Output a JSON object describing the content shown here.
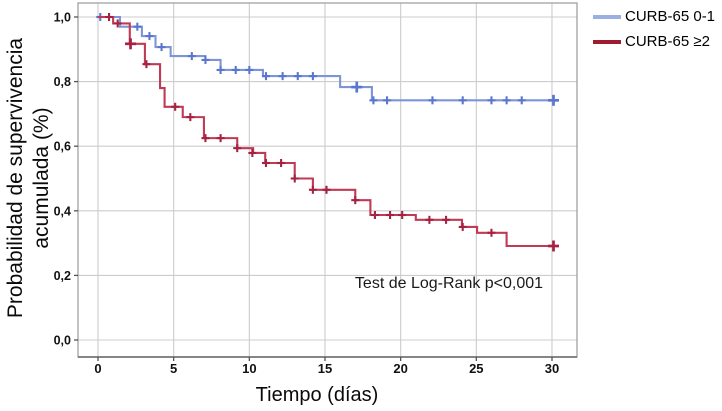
{
  "figure": {
    "ylabel_line1": "Probabilidad de supervivencia",
    "ylabel_line2": "acumulada (%)",
    "xlabel": "Tiempo (días)",
    "annotation": "Test de Log-Rank p<0,001"
  },
  "chart_data": {
    "type": "line",
    "subtype": "kaplan-meier-step-survival",
    "title": "",
    "xlabel": "Tiempo (días)",
    "ylabel": "Probabilidad de supervivencia acumulada (%)",
    "annotation": "Test de Log-Rank p<0,001",
    "grid": true,
    "legend_position": "top-right-outside",
    "xlim": [
      -1.3,
      31.7
    ],
    "ylim": [
      -0.05,
      1.04
    ],
    "xticks": {
      "values": [
        0,
        5,
        10,
        15,
        20,
        25,
        30
      ],
      "labels": [
        "0",
        "5",
        "10",
        "15",
        "20",
        "25",
        "30"
      ]
    },
    "yticks": {
      "values": [
        0.0,
        0.2,
        0.4,
        0.6,
        0.8,
        1.0
      ],
      "labels": [
        "0,0",
        "0,2",
        "0,4",
        "0,6",
        "0,8",
        "1,0"
      ]
    },
    "colors": {
      "grid": "#cccccc",
      "border": "#9a9a9a",
      "axis": "#777777",
      "tick": "#555555",
      "tick_label": "#111111"
    },
    "series": [
      {
        "name": "CURB-65 0-1",
        "color": "#7d94d8",
        "censor_color": "#5a76ce",
        "legend_color": "#9aafe2",
        "end_day": 30.1,
        "steps": [
          [
            0,
            1.0
          ],
          [
            1.45,
            0.97
          ],
          [
            2.9,
            0.941
          ],
          [
            3.8,
            0.907
          ],
          [
            4.8,
            0.879
          ],
          [
            7.1,
            0.867
          ],
          [
            8.1,
            0.836
          ],
          [
            10.9,
            0.817
          ],
          [
            16.0,
            0.783
          ],
          [
            18.1,
            0.742
          ]
        ],
        "censors": [
          [
            0.15,
            1.0,
            0
          ],
          [
            2.6,
            0.97,
            0
          ],
          [
            3.4,
            0.941,
            0
          ],
          [
            4.2,
            0.907,
            0
          ],
          [
            6.2,
            0.879,
            0
          ],
          [
            7.1,
            0.867,
            0
          ],
          [
            8.1,
            0.836,
            0
          ],
          [
            9.1,
            0.836,
            0
          ],
          [
            10.0,
            0.836,
            0
          ],
          [
            11.1,
            0.817,
            0
          ],
          [
            12.2,
            0.817,
            0
          ],
          [
            13.2,
            0.817,
            0
          ],
          [
            14.2,
            0.817,
            0
          ],
          [
            17.1,
            0.783,
            1
          ],
          [
            18.2,
            0.742,
            0
          ],
          [
            19.1,
            0.742,
            0
          ],
          [
            22.1,
            0.742,
            0
          ],
          [
            24.1,
            0.742,
            0
          ],
          [
            26.0,
            0.742,
            0
          ],
          [
            27.0,
            0.742,
            0
          ],
          [
            28.0,
            0.742,
            0
          ],
          [
            30.1,
            0.742,
            1
          ]
        ]
      },
      {
        "name": "CURB-65 ≥2",
        "color": "#c03a56",
        "censor_color": "#a52242",
        "legend_color": "#9e1c30",
        "end_day": 30.1,
        "steps": [
          [
            0,
            1.0
          ],
          [
            1.0,
            0.98
          ],
          [
            2.1,
            0.917
          ],
          [
            3.1,
            0.854
          ],
          [
            4.1,
            0.78
          ],
          [
            4.4,
            0.722
          ],
          [
            5.6,
            0.69
          ],
          [
            7.0,
            0.625
          ],
          [
            9.2,
            0.594
          ],
          [
            10.25,
            0.579
          ],
          [
            11.05,
            0.548
          ],
          [
            13.0,
            0.5
          ],
          [
            14.2,
            0.465
          ],
          [
            17.0,
            0.433
          ],
          [
            18.0,
            0.387
          ],
          [
            21.0,
            0.372
          ],
          [
            24.05,
            0.35
          ],
          [
            25.05,
            0.332
          ],
          [
            27.0,
            0.291
          ]
        ],
        "censors": [
          [
            0.73,
            1.0,
            0
          ],
          [
            1.3,
            0.98,
            0
          ],
          [
            2.15,
            0.917,
            1
          ],
          [
            3.2,
            0.854,
            0
          ],
          [
            5.1,
            0.722,
            0
          ],
          [
            6.1,
            0.69,
            0
          ],
          [
            7.1,
            0.625,
            0
          ],
          [
            8.1,
            0.625,
            0
          ],
          [
            9.2,
            0.594,
            0
          ],
          [
            10.2,
            0.579,
            0
          ],
          [
            11.1,
            0.548,
            0
          ],
          [
            12.1,
            0.548,
            0
          ],
          [
            13.0,
            0.5,
            0
          ],
          [
            14.2,
            0.465,
            0
          ],
          [
            15.1,
            0.465,
            0
          ],
          [
            17.0,
            0.433,
            0
          ],
          [
            18.3,
            0.387,
            0
          ],
          [
            19.3,
            0.387,
            0
          ],
          [
            20.1,
            0.387,
            0
          ],
          [
            21.9,
            0.372,
            0
          ],
          [
            23.0,
            0.372,
            0
          ],
          [
            24.1,
            0.35,
            0
          ],
          [
            26.0,
            0.332,
            0
          ],
          [
            30.1,
            0.291,
            1
          ]
        ]
      }
    ]
  }
}
